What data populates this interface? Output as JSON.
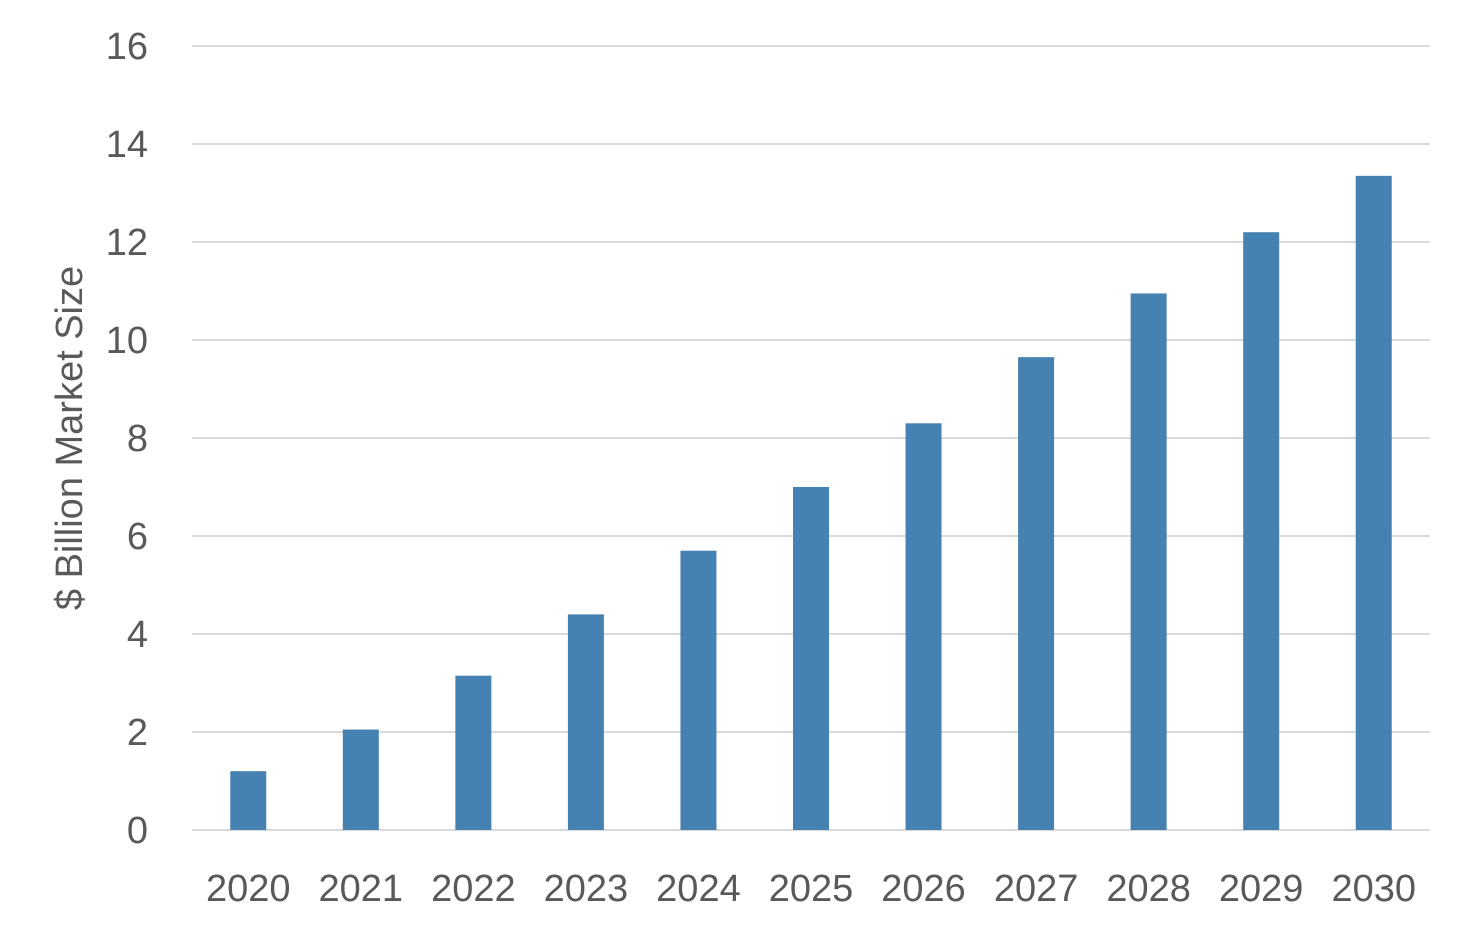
{
  "chart_data": {
    "type": "bar",
    "title": "",
    "xlabel": "",
    "ylabel": "$ Billion Market Size",
    "ylim": [
      0,
      16
    ],
    "yticks": [
      0,
      2,
      4,
      6,
      8,
      10,
      12,
      14,
      16
    ],
    "grid": "horizontal",
    "legend": "none",
    "categories": [
      "2020",
      "2021",
      "2022",
      "2023",
      "2024",
      "2025",
      "2026",
      "2027",
      "2028",
      "2029",
      "2030"
    ],
    "values": [
      1.2,
      2.05,
      3.15,
      4.4,
      5.7,
      7.0,
      8.3,
      9.65,
      10.95,
      12.2,
      13.35
    ],
    "bar_color": "#4581b1",
    "grid_color": "#d9d9d9",
    "text_color": "#595959"
  }
}
